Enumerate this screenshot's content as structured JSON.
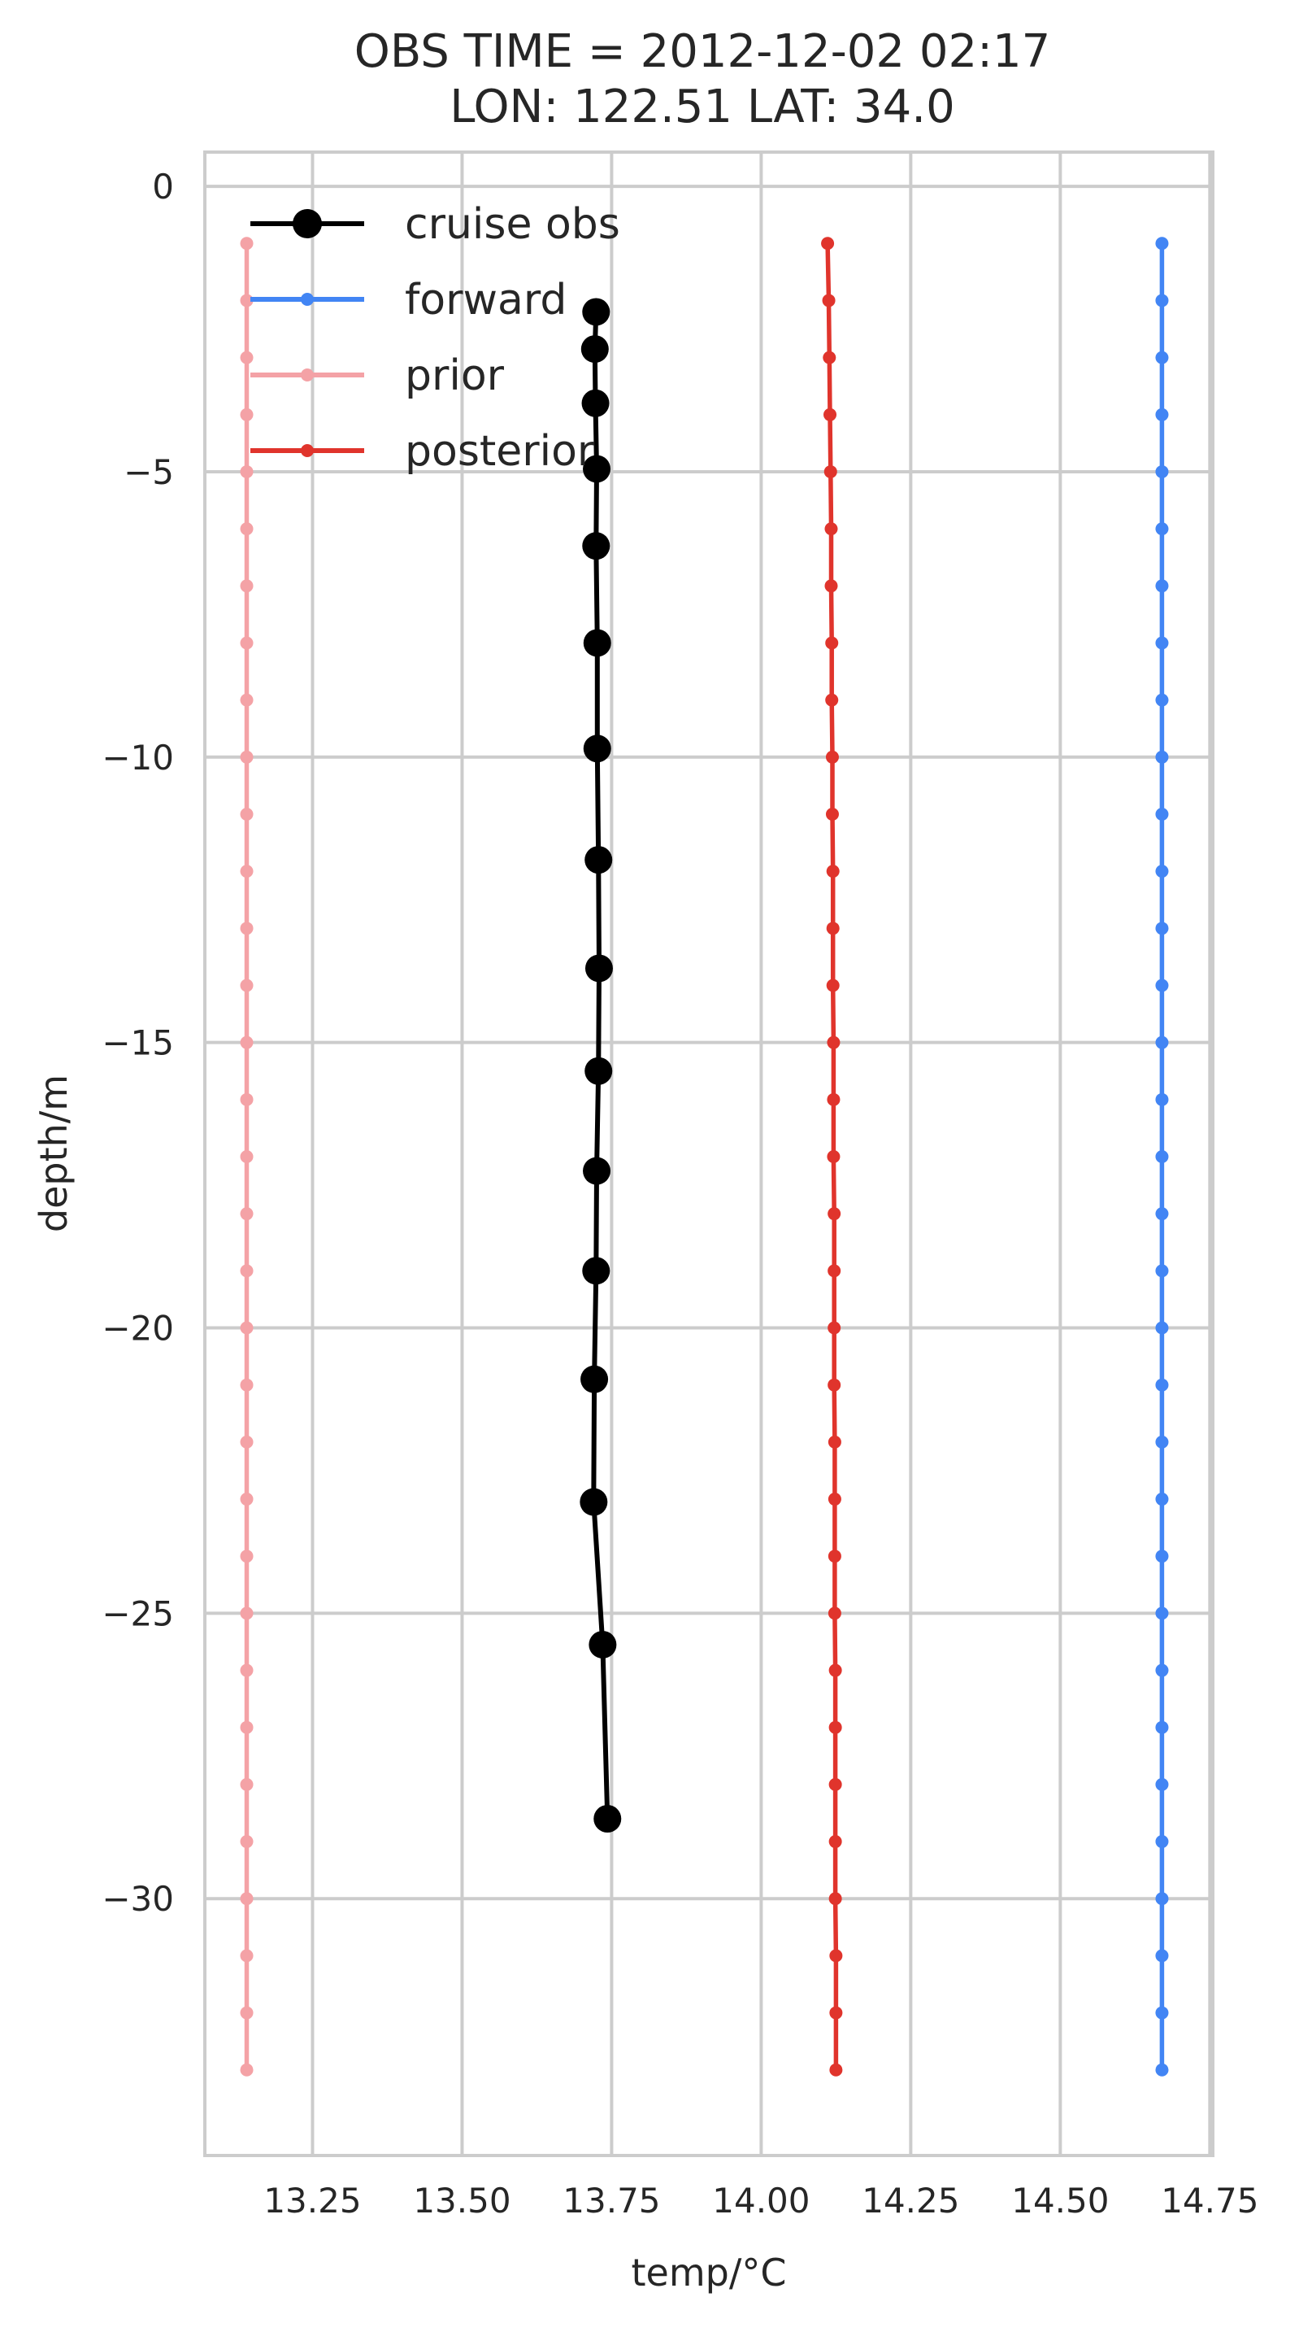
{
  "chart_data": {
    "type": "line",
    "title_line1": "OBS TIME = 2012-12-02 02:17",
    "title_line2": "LON: 122.51 LAT: 34.0",
    "xlabel": "temp/°C",
    "ylabel": "depth/m",
    "xlim": [
      13.07,
      14.755
    ],
    "ylim": [
      -34.5,
      0.6
    ],
    "xticks": [
      13.25,
      13.5,
      13.75,
      14.0,
      14.25,
      14.5,
      14.75
    ],
    "xtick_labels": [
      "13.25",
      "13.50",
      "13.75",
      "14.00",
      "14.25",
      "14.50",
      "14.75"
    ],
    "yticks": [
      0,
      -5,
      -10,
      -15,
      -20,
      -25,
      -30
    ],
    "ytick_labels": [
      "0",
      "−5",
      "−10",
      "−15",
      "−20",
      "−25",
      "−30"
    ],
    "grid": true,
    "legend_position": "top-left",
    "series": [
      {
        "name": "cruise obs",
        "color": "#000000",
        "marker": "large",
        "x": [
          13.724,
          13.722,
          13.723,
          13.725,
          13.724,
          13.726,
          13.726,
          13.728,
          13.729,
          13.728,
          13.725,
          13.724,
          13.721,
          13.72,
          13.735,
          13.743
        ],
        "y": [
          -2.2,
          -2.85,
          -3.8,
          -4.95,
          -6.3,
          -8.0,
          -9.85,
          -11.8,
          -13.7,
          -15.5,
          -17.25,
          -19.0,
          -20.9,
          -23.05,
          -25.55,
          -28.6
        ]
      },
      {
        "name": "forward",
        "color": "#4285f4",
        "marker": "small",
        "x": [
          14.67,
          14.67,
          14.67,
          14.67,
          14.67,
          14.67,
          14.67,
          14.67,
          14.67,
          14.67,
          14.67,
          14.67,
          14.67,
          14.67,
          14.67,
          14.67,
          14.67,
          14.67,
          14.67,
          14.67,
          14.67,
          14.67,
          14.67,
          14.67,
          14.67,
          14.67,
          14.67,
          14.67,
          14.67,
          14.67,
          14.67,
          14.67,
          14.67
        ],
        "y": [
          -1,
          -2,
          -3,
          -4,
          -5,
          -6,
          -7,
          -8,
          -9,
          -10,
          -11,
          -12,
          -13,
          -14,
          -15,
          -16,
          -17,
          -18,
          -19,
          -20,
          -21,
          -22,
          -23,
          -24,
          -25,
          -26,
          -27,
          -28,
          -29,
          -30,
          -31,
          -32,
          -33
        ]
      },
      {
        "name": "prior",
        "color": "#f4a2a6",
        "marker": "small",
        "x": [
          13.14,
          13.14,
          13.14,
          13.14,
          13.14,
          13.14,
          13.14,
          13.14,
          13.14,
          13.14,
          13.14,
          13.14,
          13.14,
          13.14,
          13.14,
          13.14,
          13.14,
          13.14,
          13.14,
          13.14,
          13.14,
          13.14,
          13.14,
          13.14,
          13.14,
          13.14,
          13.14,
          13.14,
          13.14,
          13.14,
          13.14,
          13.14,
          13.14
        ],
        "y": [
          -1,
          -2,
          -3,
          -4,
          -5,
          -6,
          -7,
          -8,
          -9,
          -10,
          -11,
          -12,
          -13,
          -14,
          -15,
          -16,
          -17,
          -18,
          -19,
          -20,
          -21,
          -22,
          -23,
          -24,
          -25,
          -26,
          -27,
          -28,
          -29,
          -30,
          -31,
          -32,
          -33
        ]
      },
      {
        "name": "posterior",
        "color": "#e0342c",
        "marker": "small",
        "x": [
          14.111,
          14.113,
          14.114,
          14.115,
          14.116,
          14.117,
          14.117,
          14.118,
          14.118,
          14.119,
          14.119,
          14.12,
          14.12,
          14.12,
          14.121,
          14.121,
          14.121,
          14.122,
          14.122,
          14.122,
          14.122,
          14.123,
          14.123,
          14.123,
          14.123,
          14.124,
          14.124,
          14.124,
          14.124,
          14.124,
          14.125,
          14.125,
          14.125
        ],
        "y": [
          -1,
          -2,
          -3,
          -4,
          -5,
          -6,
          -7,
          -8,
          -9,
          -10,
          -11,
          -12,
          -13,
          -14,
          -15,
          -16,
          -17,
          -18,
          -19,
          -20,
          -21,
          -22,
          -23,
          -24,
          -25,
          -26,
          -27,
          -28,
          -29,
          -30,
          -31,
          -32,
          -33
        ]
      }
    ]
  }
}
